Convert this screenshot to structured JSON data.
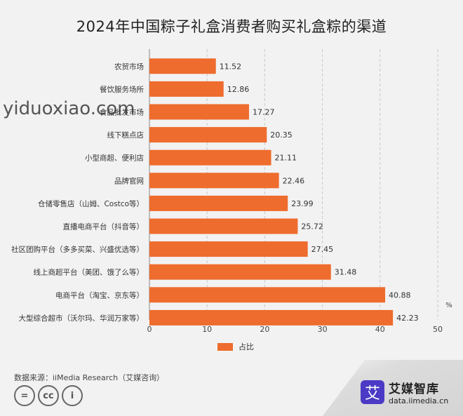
{
  "title": "2024年中国粽子礼盒消费者购买礼盒粽的渠道",
  "watermark": "yiduoxiao.com",
  "source": "数据来源：iiMedia Research（艾媒咨询）",
  "brand": {
    "name": "艾媒智库",
    "url": "data.iimedia.cn",
    "logo_glyph": "艾"
  },
  "license_icons": [
    "=",
    "cc",
    "i"
  ],
  "colors": {
    "bar": "#ee6c2d",
    "grid": "#c8c8c8"
  },
  "chart_data": {
    "type": "bar",
    "orientation": "horizontal",
    "title": "2024年中国粽子礼盒消费者购买礼盒粽的渠道",
    "categories": [
      "农贸市场",
      "餐饮服务场所",
      "食品批发市场",
      "线下糕点店",
      "小型商超、便利店",
      "品牌官网",
      "仓储零售店（山姆、Costco等）",
      "直播电商平台（抖音等）",
      "社区团购平台（多多买菜、兴盛优选等）",
      "线上商超平台（美团、饿了么等）",
      "电商平台（淘宝、京东等）",
      "大型综合超市（沃尔玛、华润万家等）"
    ],
    "series": [
      {
        "name": "占比",
        "values": [
          11.52,
          12.86,
          17.27,
          20.35,
          21.11,
          22.46,
          23.99,
          25.72,
          27.45,
          31.48,
          40.88,
          42.23
        ]
      }
    ],
    "xlim": [
      0,
      50
    ],
    "xticks": [
      0,
      10,
      20,
      30,
      40,
      50
    ],
    "unit": "%",
    "grid": "vertical dashed",
    "legend": "bottom-center"
  }
}
